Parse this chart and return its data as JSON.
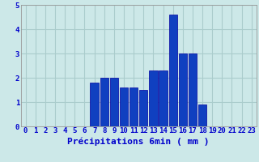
{
  "categories": [
    0,
    1,
    2,
    3,
    4,
    5,
    6,
    7,
    8,
    9,
    10,
    11,
    12,
    13,
    14,
    15,
    16,
    17,
    18,
    19,
    20,
    21,
    22,
    23
  ],
  "values": [
    0,
    0,
    0,
    0,
    0,
    0,
    0,
    1.8,
    2.0,
    2.0,
    1.6,
    1.6,
    1.5,
    2.3,
    2.3,
    4.6,
    3.0,
    3.0,
    0.9,
    0,
    0,
    0,
    0,
    0
  ],
  "bar_color": "#1040c0",
  "bar_edge_color": "#0000a0",
  "bg_color": "#cce8e8",
  "grid_color": "#aacccc",
  "xlabel": "Précipitations 6min ( mm )",
  "ylim": [
    0,
    5
  ],
  "yticks": [
    0,
    1,
    2,
    3,
    4,
    5
  ],
  "tick_fontsize": 6.5,
  "label_fontsize": 8.0
}
